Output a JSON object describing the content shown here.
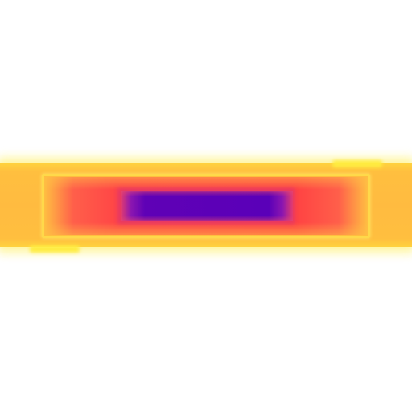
{
  "image": {
    "description_type": "heatmap-style rectangular glow bands",
    "colors": {
      "background": "#ffffff",
      "outer_glow": "#fff27a",
      "outer_band": "#ffbb40",
      "frame": "#ffd94a",
      "middle_band": "#ff4444",
      "core": "#5a00b8"
    }
  }
}
